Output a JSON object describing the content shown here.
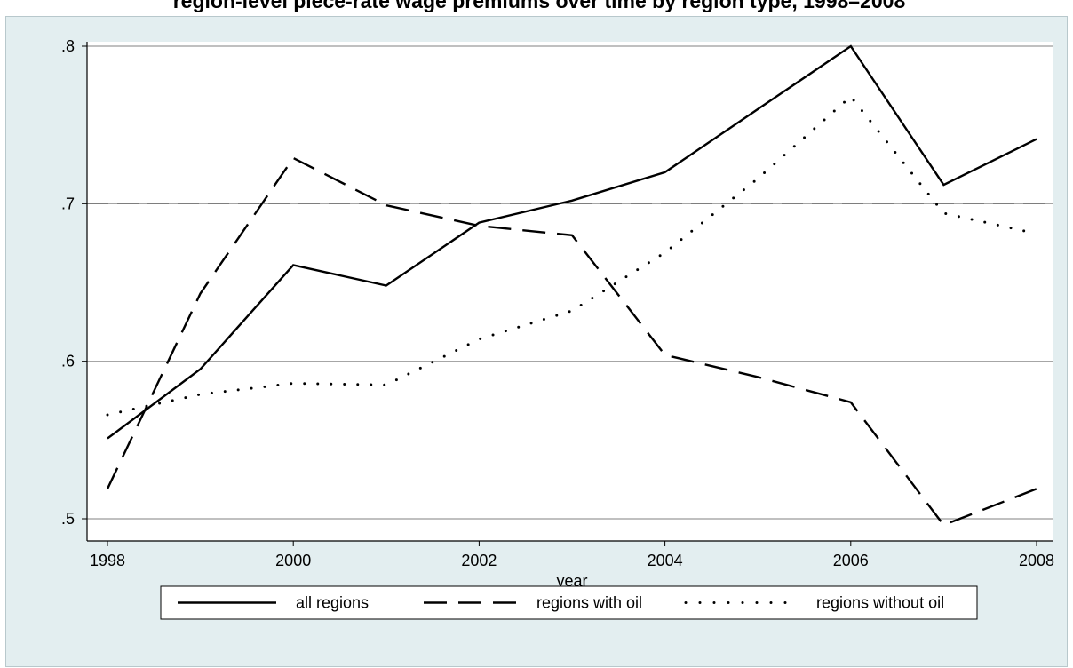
{
  "title": "region-level piece-rate wage premiums over time by region type, 1998–2008",
  "chart_data": {
    "type": "line",
    "x": [
      1998,
      1999,
      2000,
      2001,
      2002,
      2003,
      2004,
      2005,
      2006,
      2007,
      2008
    ],
    "xlabel": "year",
    "ylabel": "",
    "xticks": [
      1998,
      2000,
      2002,
      2004,
      2006,
      2008
    ],
    "yticks": [
      0.5,
      0.6,
      0.7,
      0.8
    ],
    "ytick_labels": [
      ".5",
      ".6",
      ".7",
      ".8"
    ],
    "xlim": [
      1998,
      2008
    ],
    "ylim": [
      0.5,
      0.8
    ],
    "grid": "horizontal",
    "reference_line": 0.7,
    "legend_position": "bottom",
    "series": [
      {
        "name": "all regions",
        "style": "solid",
        "values": [
          0.551,
          0.595,
          0.661,
          0.648,
          0.688,
          0.702,
          0.72,
          0.76,
          0.8,
          0.712,
          0.741
        ]
      },
      {
        "name": "regions with oil",
        "style": "dashed",
        "values": [
          0.519,
          0.643,
          0.729,
          0.699,
          0.686,
          0.68,
          0.604,
          0.59,
          0.574,
          0.496,
          0.519
        ]
      },
      {
        "name": "regions without oil",
        "style": "dotted",
        "values": [
          0.566,
          0.579,
          0.586,
          0.585,
          0.614,
          0.632,
          0.669,
          0.716,
          0.768,
          0.694,
          0.681
        ]
      }
    ]
  }
}
